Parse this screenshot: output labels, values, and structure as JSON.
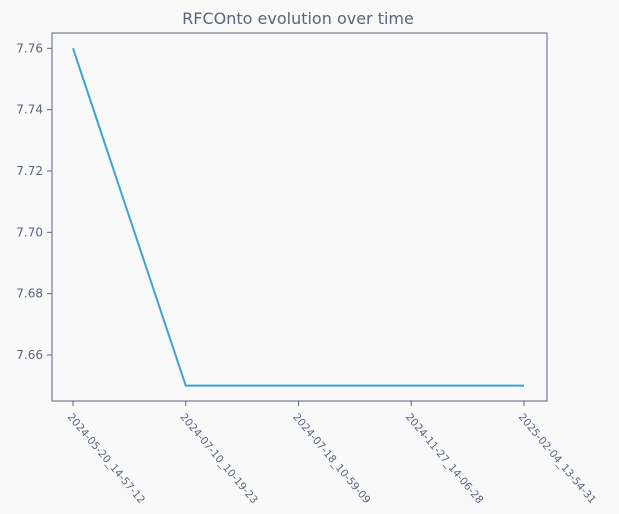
{
  "chart_data": {
    "type": "line",
    "title": "RFCOnto evolution over time",
    "xlabel": "",
    "ylabel": "",
    "categories": [
      "2024-05-20_14-57-12",
      "2024-07-10_10-19-23",
      "2024-07-18_10-59-09",
      "2024-11-27_14-06-28",
      "2025-02-04_13-54-31"
    ],
    "series": [
      {
        "values": [
          7.76,
          7.65,
          7.65,
          7.65,
          7.65
        ],
        "color": "#3aa5d3"
      }
    ],
    "ylim": [
      7.645,
      7.765
    ],
    "yticks": [
      "7.66",
      "7.68",
      "7.70",
      "7.72",
      "7.74",
      "7.76"
    ],
    "grid": false,
    "colors": {
      "background": "#f9f9fa",
      "axis": "#58657a",
      "line": "#3aa5d3"
    }
  }
}
